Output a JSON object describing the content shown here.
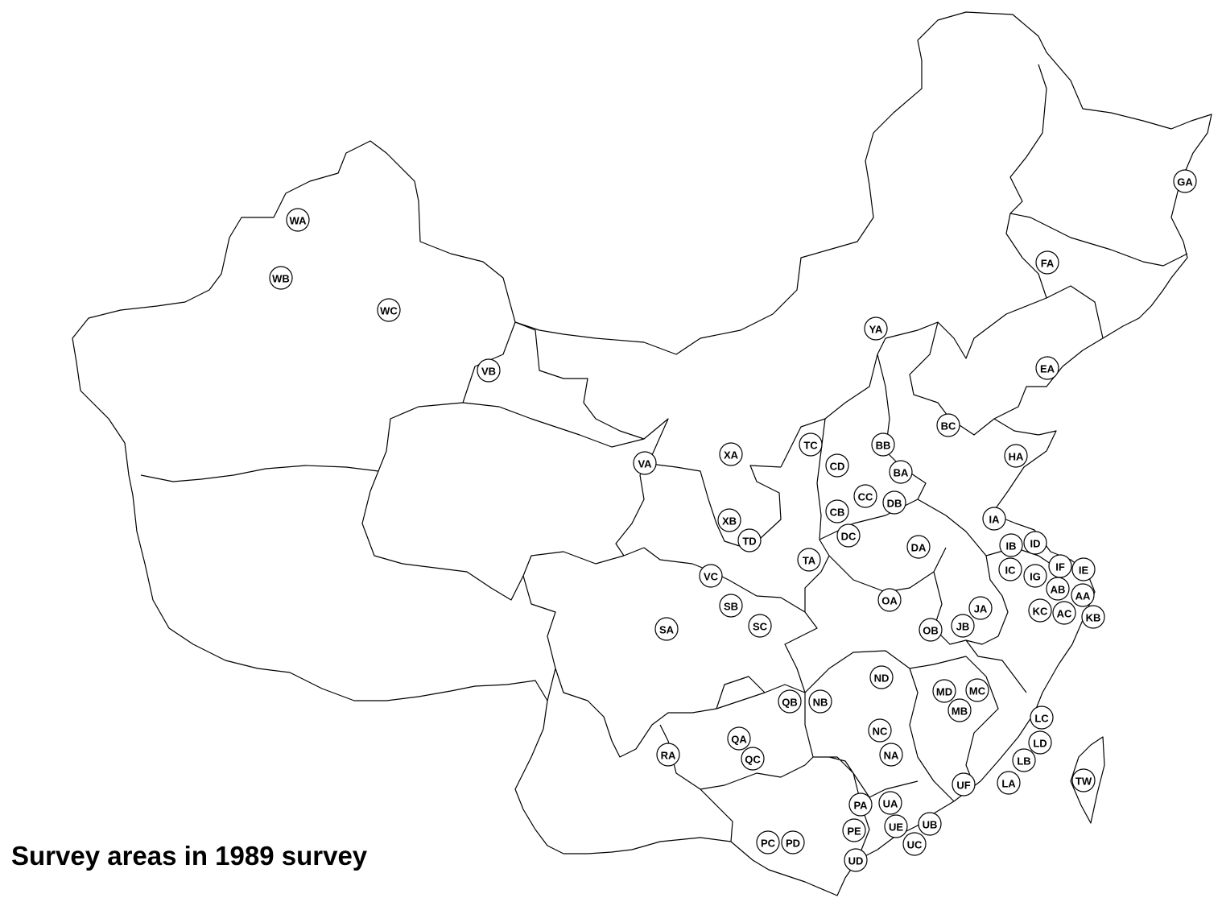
{
  "title": "Survey areas in 1989 survey",
  "colors": {
    "outline": "#000000",
    "marker_fill": "#ffffff",
    "background": "#ffffff"
  },
  "areas": [
    "WA",
    "WB",
    "WC",
    "VB",
    "VA",
    "YA",
    "GA",
    "FA",
    "EA",
    "BC",
    "BB",
    "TC",
    "CD",
    "BA",
    "XA",
    "CC",
    "DB",
    "CB",
    "XB",
    "TD",
    "DC",
    "HA",
    "IA",
    "ID",
    "IB",
    "DA",
    "TA",
    "VC",
    "IF",
    "IE",
    "IC",
    "IG",
    "AB",
    "AA",
    "SB",
    "OA",
    "JA",
    "KC",
    "AC",
    "KB",
    "SA",
    "SC",
    "OB",
    "JB",
    "ND",
    "MD",
    "MC",
    "MB",
    "QB",
    "NB",
    "LC",
    "QA",
    "NC",
    "LD",
    "RA",
    "QC",
    "NA",
    "LB",
    "TW",
    "UF",
    "LA",
    "PA",
    "UA",
    "UE",
    "UB",
    "PE",
    "PC",
    "PD",
    "UC",
    "UD"
  ]
}
